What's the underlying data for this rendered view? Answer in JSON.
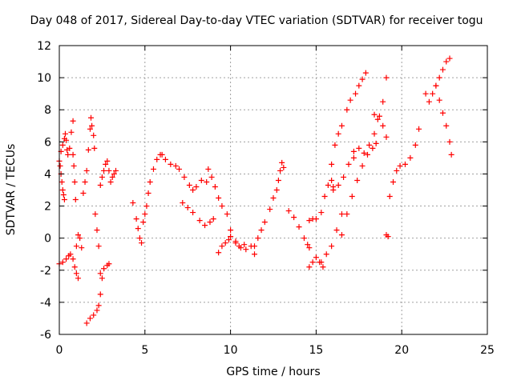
{
  "chart_data": {
    "type": "scatter",
    "title": "Day 048 of 2017, Sidereal Day-to-day VTEC variation (SDTVAR) for receiver togu",
    "xlabel": "GPS time / hours",
    "ylabel": "SDTVAR / TECUs",
    "xlim": [
      0,
      25
    ],
    "ylim": [
      -6,
      12
    ],
    "xticks": [
      0,
      5,
      10,
      15,
      20,
      25
    ],
    "yticks": [
      -6,
      -4,
      -2,
      0,
      2,
      4,
      6,
      8,
      10,
      12
    ],
    "grid": true,
    "marker": "+",
    "color": "#ff0000",
    "series": [
      {
        "x": [
          0.0,
          0.1,
          0.2,
          0.3,
          0.35,
          0.4,
          0.45,
          0.5,
          0.6,
          0.7,
          0.8
        ],
        "y": [
          4.8,
          5.4,
          5.8,
          6.2,
          6.5,
          6.1,
          5.5,
          5.2,
          5.6,
          6.6,
          7.3
        ]
      },
      {
        "x": [
          0.05,
          0.1,
          0.15,
          0.2,
          0.25,
          0.3
        ],
        "y": [
          4.5,
          4.0,
          3.5,
          3.0,
          2.7,
          2.4
        ]
      },
      {
        "x": [
          0.8,
          0.85,
          0.9,
          0.95
        ],
        "y": [
          5.2,
          4.5,
          3.5,
          2.4
        ]
      },
      {
        "x": [
          0.0,
          0.2,
          0.4,
          0.55,
          0.65,
          0.8,
          0.9,
          1.0,
          1.1
        ],
        "y": [
          -1.6,
          -1.5,
          -1.3,
          -1.1,
          -1.0,
          -1.3,
          -1.8,
          -2.2,
          -2.5
        ]
      },
      {
        "x": [
          1.0,
          1.1,
          1.2,
          1.3
        ],
        "y": [
          -0.5,
          0.2,
          0.0,
          -0.6
        ]
      },
      {
        "x": [
          1.4,
          1.5,
          1.6,
          1.7,
          1.8,
          1.85,
          1.9,
          2.0,
          2.05
        ],
        "y": [
          2.8,
          3.5,
          4.2,
          5.5,
          6.8,
          7.5,
          7.0,
          6.4,
          5.6
        ]
      },
      {
        "x": [
          1.6,
          1.8,
          2.0,
          2.2,
          2.3,
          2.4,
          2.5
        ],
        "y": [
          -5.3,
          -5.0,
          -4.8,
          -4.5,
          -4.2,
          -3.5,
          -2.5
        ]
      },
      {
        "x": [
          2.1,
          2.2,
          2.3
        ],
        "y": [
          1.5,
          0.5,
          -0.5
        ]
      },
      {
        "x": [
          2.4,
          2.5,
          2.6,
          2.7,
          2.8,
          2.9
        ],
        "y": [
          3.3,
          3.8,
          4.2,
          4.6,
          4.8,
          4.2
        ]
      },
      {
        "x": [
          2.4,
          2.6,
          2.8,
          2.9
        ],
        "y": [
          -2.2,
          -1.9,
          -1.7,
          -1.6
        ]
      },
      {
        "x": [
          3.0,
          3.1,
          3.2,
          3.3
        ],
        "y": [
          3.5,
          3.8,
          4.0,
          4.2
        ]
      },
      {
        "x": [
          4.3,
          4.5,
          4.6,
          4.7,
          4.8
        ],
        "y": [
          2.2,
          1.2,
          0.6,
          0.0,
          -0.3
        ]
      },
      {
        "x": [
          4.9,
          5.0,
          5.1,
          5.2,
          5.3,
          5.5,
          5.7,
          5.9,
          6.0,
          6.2,
          6.5,
          6.8,
          7.0,
          7.3,
          7.6,
          7.8,
          8.0,
          8.3,
          8.6
        ],
        "y": [
          1.0,
          1.5,
          2.0,
          2.8,
          3.5,
          4.3,
          4.9,
          5.2,
          5.2,
          4.9,
          4.6,
          4.5,
          4.3,
          3.8,
          3.3,
          3.0,
          3.2,
          3.6,
          3.5
        ]
      },
      {
        "x": [
          7.2,
          7.5,
          7.8,
          8.2,
          8.5,
          8.8,
          9.0
        ],
        "y": [
          2.2,
          1.9,
          1.6,
          1.1,
          0.8,
          1.0,
          1.2
        ]
      },
      {
        "x": [
          8.7,
          8.9,
          9.1
        ],
        "y": [
          4.3,
          3.8,
          3.2
        ]
      },
      {
        "x": [
          9.3,
          9.5,
          9.7,
          9.9,
          10.0
        ],
        "y": [
          -0.9,
          -0.5,
          -0.3,
          -0.1,
          0.1
        ]
      },
      {
        "x": [
          9.3,
          9.5,
          9.8,
          10.0,
          10.3,
          10.5,
          10.8
        ],
        "y": [
          2.5,
          2.0,
          1.5,
          0.5,
          -0.2,
          -0.5,
          -0.4
        ]
      },
      {
        "x": [
          10.3,
          10.6,
          10.9,
          11.2,
          11.4
        ],
        "y": [
          -0.3,
          -0.6,
          -0.7,
          -0.5,
          -1.0
        ]
      },
      {
        "x": [
          11.4,
          11.6,
          11.8,
          12.0,
          12.3,
          12.5,
          12.7
        ],
        "y": [
          -0.5,
          0.0,
          0.5,
          1.0,
          1.8,
          2.5,
          3.0
        ]
      },
      {
        "x": [
          12.8,
          12.9,
          13.0,
          13.1
        ],
        "y": [
          3.6,
          4.2,
          4.7,
          4.4
        ]
      },
      {
        "x": [
          13.4,
          13.7,
          14.0,
          14.3,
          14.5,
          14.6
        ],
        "y": [
          1.7,
          1.3,
          0.7,
          0.0,
          -0.4,
          -0.6
        ]
      },
      {
        "x": [
          14.6,
          14.8,
          15.0,
          15.2,
          15.4
        ],
        "y": [
          -1.8,
          -1.5,
          -1.2,
          -1.5,
          -1.8
        ]
      },
      {
        "x": [
          14.6,
          14.8,
          15.0,
          15.3,
          15.5,
          15.7,
          15.9,
          16.0
        ],
        "y": [
          1.1,
          1.2,
          1.2,
          1.6,
          2.6,
          3.3,
          3.6,
          3.2
        ]
      },
      {
        "x": [
          15.3,
          15.6,
          15.9,
          16.2,
          16.5
        ],
        "y": [
          -1.5,
          -1.0,
          -0.5,
          0.5,
          1.5
        ]
      },
      {
        "x": [
          15.9,
          16.1,
          16.3,
          16.5,
          16.8,
          17.0,
          17.3,
          17.5,
          17.7,
          17.9
        ],
        "y": [
          4.6,
          5.8,
          6.5,
          7.0,
          8.0,
          8.6,
          9.0,
          9.5,
          9.9,
          10.3
        ]
      },
      {
        "x": [
          16.0,
          16.3,
          16.6,
          16.9,
          17.2
        ],
        "y": [
          3.0,
          3.3,
          3.8,
          4.6,
          5.0
        ]
      },
      {
        "x": [
          16.5,
          16.8,
          17.1,
          17.4,
          17.7,
          18.0,
          18.3,
          18.5
        ],
        "y": [
          0.2,
          1.5,
          2.6,
          3.6,
          4.5,
          5.2,
          5.6,
          5.9
        ]
      },
      {
        "x": [
          17.2,
          17.5,
          17.8,
          18.1,
          18.4,
          18.6,
          18.9,
          19.1
        ],
        "y": [
          5.4,
          5.6,
          5.3,
          5.8,
          6.5,
          7.4,
          8.5,
          10.0
        ]
      },
      {
        "x": [
          18.4,
          18.7,
          18.9,
          19.1
        ],
        "y": [
          7.7,
          7.6,
          7.0,
          6.3
        ]
      },
      {
        "x": [
          19.1,
          19.2
        ],
        "y": [
          0.2,
          0.1
        ]
      },
      {
        "x": [
          19.3,
          19.5,
          19.7,
          19.9,
          20.2,
          20.5,
          20.8,
          21.0
        ],
        "y": [
          2.6,
          3.5,
          4.2,
          4.5,
          4.6,
          5.0,
          5.8,
          6.8
        ]
      },
      {
        "x": [
          21.4,
          21.6,
          21.8,
          22.0,
          22.2,
          22.4,
          22.6,
          22.8
        ],
        "y": [
          9.0,
          8.5,
          9.0,
          9.5,
          10.0,
          10.5,
          11.0,
          11.2
        ]
      },
      {
        "x": [
          22.0,
          22.2,
          22.4,
          22.6,
          22.8,
          22.9
        ],
        "y": [
          9.5,
          8.6,
          7.8,
          7.0,
          6.0,
          5.2
        ]
      }
    ]
  }
}
